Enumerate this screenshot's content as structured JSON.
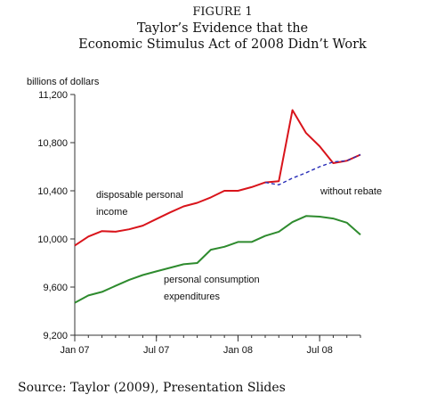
{
  "figure_label": "FIGURE 1",
  "title_line1": "Taylor’s Evidence that the",
  "title_line2": "Economic Stimulus Act of 2008 Didn’t Work",
  "source": "Source:  Taylor (2009), Presentation Slides",
  "chart_data": {
    "type": "line",
    "ylabel": "billions of dollars",
    "ylim": [
      9200,
      11200
    ],
    "yticks": [
      9200,
      9600,
      10000,
      10400,
      10800,
      11200
    ],
    "ytick_labels": [
      "9,200",
      "9,600",
      "10,000",
      "10,400",
      "10,800",
      "11,200"
    ],
    "xlim": [
      0,
      21
    ],
    "xticks": [
      0,
      6,
      12,
      18
    ],
    "xtick_labels": [
      "Jan 07",
      "Jul 07",
      "Jan 08",
      "Jul 08"
    ],
    "grid": false,
    "legend": "none",
    "series": [
      {
        "name": "disposable personal income",
        "color": "#d9141b",
        "dash": "solid",
        "x": [
          0,
          1,
          2,
          3,
          4,
          5,
          6,
          7,
          8,
          9,
          10,
          11,
          12,
          13,
          14,
          15,
          16,
          17,
          18,
          19,
          20,
          21
        ],
        "y": [
          9945,
          10020,
          10065,
          10060,
          10080,
          10110,
          10165,
          10220,
          10270,
          10300,
          10345,
          10400,
          10400,
          10430,
          10470,
          10480,
          11070,
          10880,
          10770,
          10630,
          10650,
          10700
        ]
      },
      {
        "name": "without rebate",
        "color": "#2a2fb8",
        "dash": "dashed",
        "x": [
          14,
          15,
          16,
          17,
          18,
          19,
          20,
          21
        ],
        "y": [
          10470,
          10450,
          10505,
          10550,
          10600,
          10640,
          10650,
          10700
        ]
      },
      {
        "name": "personal consumption expenditures",
        "color": "#2e8b2e",
        "dash": "solid",
        "x": [
          0,
          1,
          2,
          3,
          4,
          5,
          6,
          7,
          8,
          9,
          10,
          11,
          12,
          13,
          14,
          15,
          16,
          17,
          18,
          19,
          20,
          21
        ],
        "y": [
          9470,
          9530,
          9560,
          9610,
          9660,
          9700,
          9730,
          9760,
          9790,
          9800,
          9910,
          9935,
          9975,
          9975,
          10025,
          10060,
          10140,
          10190,
          10185,
          10170,
          10135,
          10035
        ]
      }
    ],
    "annotations": [
      {
        "text": "disposable personal",
        "series": 0
      },
      {
        "text": "income",
        "series": 0
      },
      {
        "text": "without rebate",
        "series": 1
      },
      {
        "text": "personal consumption",
        "series": 2
      },
      {
        "text": "expenditures",
        "series": 2
      }
    ]
  }
}
